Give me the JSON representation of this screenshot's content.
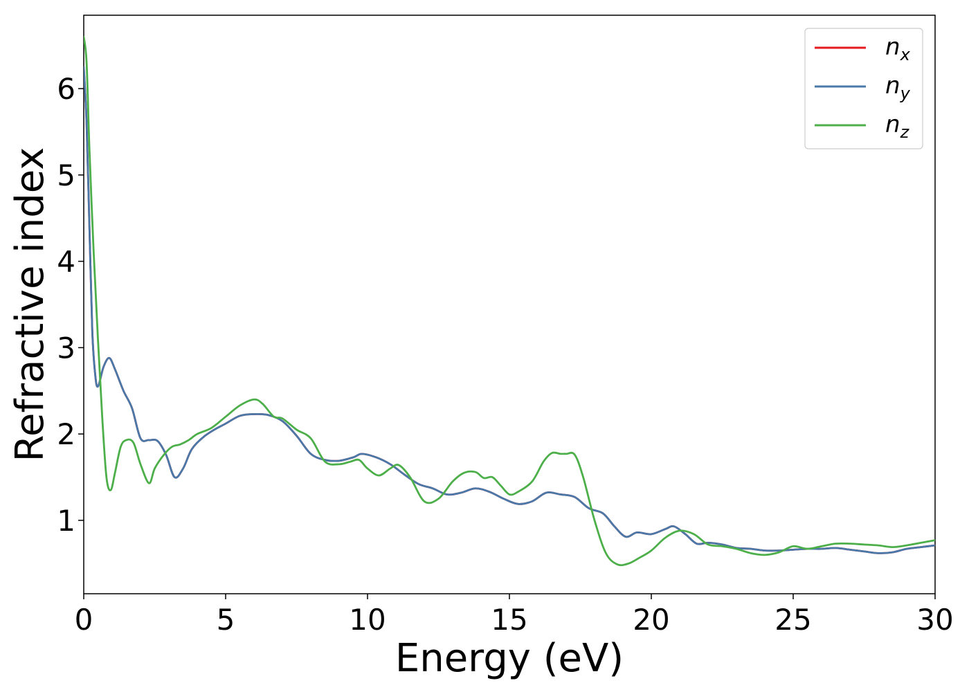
{
  "chart_data": {
    "type": "line",
    "xlabel": "Energy (eV)",
    "ylabel": "Refractive index",
    "xlim": [
      0,
      30
    ],
    "ylim": [
      0.15,
      6.85
    ],
    "xticks": [
      0,
      5,
      10,
      15,
      20,
      25,
      30
    ],
    "yticks": [
      1,
      2,
      3,
      4,
      5,
      6
    ],
    "grid": false,
    "legend_position": "top-right",
    "series": [
      {
        "name": "n",
        "subscript": "x",
        "color": "#e41a1c",
        "x": [
          0,
          0.1,
          0.2,
          0.3,
          0.4,
          0.5,
          0.7,
          0.9,
          1.1,
          1.4,
          1.7,
          2.0,
          2.3,
          2.6,
          2.9,
          3.2,
          3.5,
          3.8,
          4.2,
          4.6,
          5.0,
          5.5,
          6.0,
          6.5,
          7.0,
          7.5,
          8.0,
          8.5,
          9.0,
          9.5,
          9.8,
          10.3,
          10.8,
          11.3,
          11.8,
          12.3,
          12.8,
          13.3,
          13.8,
          14.3,
          14.8,
          15.3,
          15.8,
          16.3,
          16.8,
          17.3,
          17.8,
          18.3,
          18.7,
          19.1,
          19.5,
          20.0,
          20.5,
          20.8,
          21.2,
          21.6,
          22.0,
          22.5,
          23.0,
          23.5,
          24.0,
          24.5,
          25.0,
          25.5,
          26.0,
          26.5,
          27.0,
          27.5,
          28.0,
          28.5,
          29.0,
          29.5,
          30.0
        ],
        "values": [
          6.25,
          5.6,
          4.4,
          3.2,
          2.7,
          2.55,
          2.78,
          2.88,
          2.75,
          2.5,
          2.3,
          1.95,
          1.93,
          1.92,
          1.76,
          1.5,
          1.6,
          1.82,
          1.96,
          2.05,
          2.12,
          2.21,
          2.23,
          2.22,
          2.15,
          1.98,
          1.77,
          1.7,
          1.69,
          1.73,
          1.77,
          1.73,
          1.65,
          1.53,
          1.42,
          1.37,
          1.3,
          1.32,
          1.37,
          1.33,
          1.25,
          1.19,
          1.22,
          1.32,
          1.3,
          1.27,
          1.14,
          1.08,
          0.93,
          0.81,
          0.86,
          0.84,
          0.9,
          0.93,
          0.84,
          0.73,
          0.74,
          0.72,
          0.68,
          0.67,
          0.65,
          0.65,
          0.66,
          0.67,
          0.67,
          0.68,
          0.66,
          0.64,
          0.62,
          0.63,
          0.67,
          0.69,
          0.71
        ]
      },
      {
        "name": "n",
        "subscript": "y",
        "color": "#4a78a8",
        "x": [
          0,
          0.1,
          0.2,
          0.3,
          0.4,
          0.5,
          0.7,
          0.9,
          1.1,
          1.4,
          1.7,
          2.0,
          2.3,
          2.6,
          2.9,
          3.2,
          3.5,
          3.8,
          4.2,
          4.6,
          5.0,
          5.5,
          6.0,
          6.5,
          7.0,
          7.5,
          8.0,
          8.5,
          9.0,
          9.5,
          9.8,
          10.3,
          10.8,
          11.3,
          11.8,
          12.3,
          12.8,
          13.3,
          13.8,
          14.3,
          14.8,
          15.3,
          15.8,
          16.3,
          16.8,
          17.3,
          17.8,
          18.3,
          18.7,
          19.1,
          19.5,
          20.0,
          20.5,
          20.8,
          21.2,
          21.6,
          22.0,
          22.5,
          23.0,
          23.5,
          24.0,
          24.5,
          25.0,
          25.5,
          26.0,
          26.5,
          27.0,
          27.5,
          28.0,
          28.5,
          29.0,
          29.5,
          30.0
        ],
        "values": [
          6.25,
          5.6,
          4.4,
          3.2,
          2.7,
          2.55,
          2.78,
          2.88,
          2.75,
          2.5,
          2.3,
          1.95,
          1.93,
          1.92,
          1.76,
          1.5,
          1.6,
          1.82,
          1.96,
          2.05,
          2.12,
          2.21,
          2.23,
          2.22,
          2.15,
          1.98,
          1.77,
          1.7,
          1.69,
          1.73,
          1.77,
          1.73,
          1.65,
          1.53,
          1.42,
          1.37,
          1.3,
          1.32,
          1.37,
          1.33,
          1.25,
          1.19,
          1.22,
          1.32,
          1.3,
          1.27,
          1.14,
          1.08,
          0.93,
          0.81,
          0.86,
          0.84,
          0.9,
          0.93,
          0.84,
          0.73,
          0.74,
          0.72,
          0.68,
          0.67,
          0.65,
          0.65,
          0.66,
          0.67,
          0.67,
          0.68,
          0.66,
          0.64,
          0.62,
          0.63,
          0.67,
          0.69,
          0.71
        ]
      },
      {
        "name": "n",
        "subscript": "z",
        "color": "#4daf4a",
        "x": [
          0,
          0.1,
          0.2,
          0.35,
          0.5,
          0.65,
          0.8,
          0.95,
          1.1,
          1.3,
          1.5,
          1.75,
          2.0,
          2.3,
          2.5,
          2.8,
          3.1,
          3.4,
          3.7,
          4.0,
          4.5,
          5.0,
          5.5,
          6.0,
          6.3,
          6.7,
          7.0,
          7.5,
          8.0,
          8.5,
          9.0,
          9.4,
          9.7,
          10.0,
          10.4,
          10.8,
          11.1,
          11.5,
          12.0,
          12.5,
          13.0,
          13.4,
          13.8,
          14.1,
          14.4,
          14.7,
          15.0,
          15.3,
          15.8,
          16.2,
          16.5,
          16.8,
          17.0,
          17.3,
          17.6,
          18.0,
          18.4,
          18.8,
          19.2,
          19.6,
          20.0,
          20.5,
          21.0,
          21.5,
          22.0,
          22.5,
          23.0,
          23.5,
          24.0,
          24.5,
          25.0,
          25.5,
          26.0,
          26.5,
          27.0,
          27.5,
          28.0,
          28.5,
          29.0,
          29.5,
          30.0
        ],
        "values": [
          6.6,
          6.3,
          5.3,
          4.1,
          3.1,
          2.2,
          1.5,
          1.35,
          1.55,
          1.85,
          1.93,
          1.9,
          1.65,
          1.43,
          1.6,
          1.75,
          1.85,
          1.88,
          1.93,
          2.0,
          2.07,
          2.2,
          2.33,
          2.4,
          2.35,
          2.2,
          2.18,
          2.05,
          1.95,
          1.68,
          1.65,
          1.68,
          1.7,
          1.6,
          1.52,
          1.6,
          1.64,
          1.5,
          1.22,
          1.25,
          1.45,
          1.55,
          1.56,
          1.49,
          1.5,
          1.4,
          1.3,
          1.33,
          1.45,
          1.68,
          1.78,
          1.77,
          1.77,
          1.76,
          1.5,
          1.0,
          0.62,
          0.49,
          0.5,
          0.57,
          0.65,
          0.8,
          0.88,
          0.84,
          0.72,
          0.7,
          0.67,
          0.62,
          0.6,
          0.63,
          0.7,
          0.67,
          0.7,
          0.73,
          0.73,
          0.72,
          0.71,
          0.69,
          0.71,
          0.74,
          0.77
        ]
      }
    ]
  }
}
